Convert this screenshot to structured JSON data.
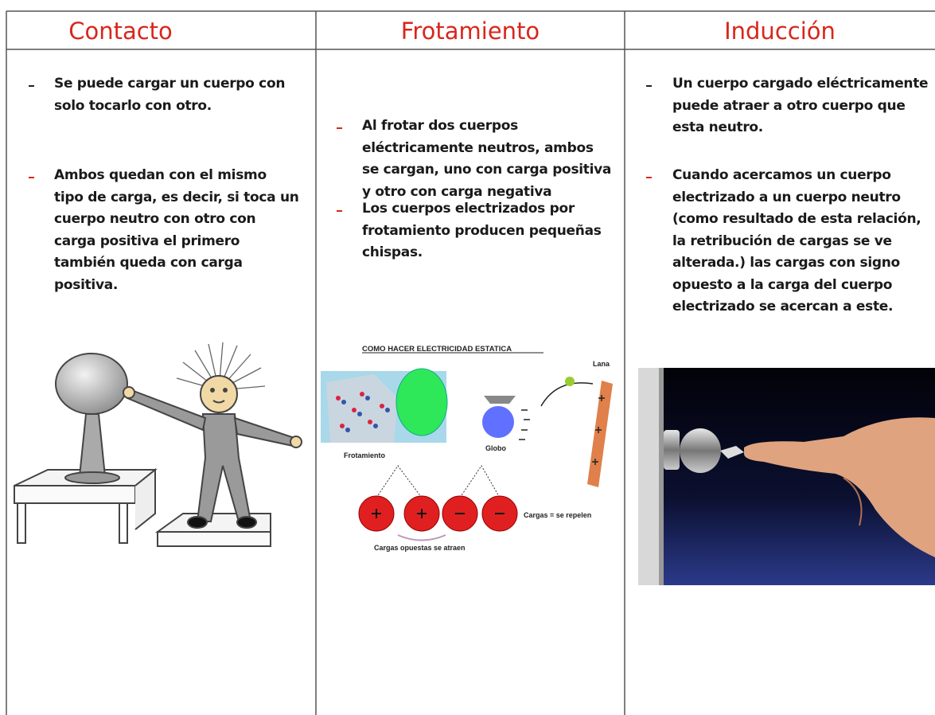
{
  "columns": [
    {
      "title": "Contacto",
      "bullets": [
        [
          "Se puede cargar un cuerpo con",
          "solo tocarlo con otro."
        ],
        [
          "Ambos quedan con el mismo",
          "tipo de carga, es decir, si toca un",
          "cuerpo neutro con otro con",
          "carga positiva el primero",
          "también queda con carga",
          "positiva."
        ]
      ]
    },
    {
      "title": "Frotamiento",
      "bullets": [
        [
          "Al frotar dos cuerpos",
          "eléctricamente neutros, ambos",
          "se cargan, uno con carga positiva",
          "y otro con carga negativa"
        ],
        [
          "Los cuerpos electrizados por",
          "frotamiento producen pequeñas",
          "chispas."
        ]
      ],
      "figure": {
        "title": "COMO HACER ELECTRICIDAD ESTATICA",
        "lana": "Lana",
        "frotamiento": "Frotamiento",
        "globo": "Globo",
        "repelen": "Cargas = se repelen",
        "atraen": "Cargas opuestas se atraen"
      }
    },
    {
      "title": "Inducción",
      "bullets": [
        [
          "Un cuerpo cargado eléctricamente",
          "puede atraer a otro cuerpo que",
          "esta neutro."
        ],
        [
          "Cuando acercamos un cuerpo",
          "electrizado a un cuerpo neutro",
          "(como resultado de esta relación,",
          "la retribución de cargas se ve",
          "alterada.) las cargas con signo",
          "opuesto a la carga del cuerpo",
          "electrizado se acercan a este."
        ]
      ]
    }
  ]
}
